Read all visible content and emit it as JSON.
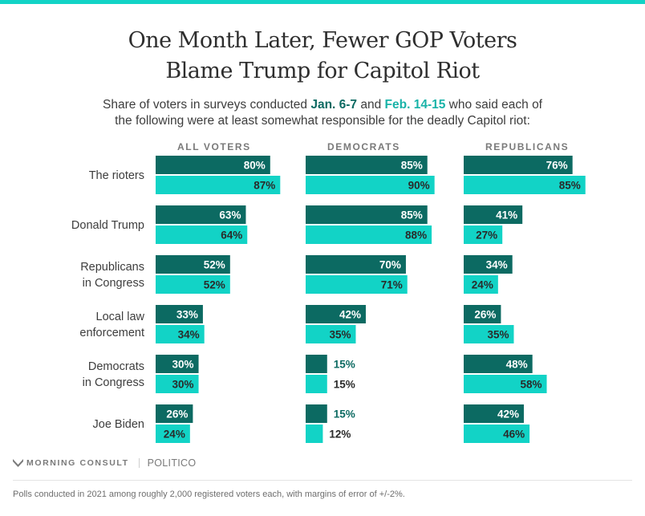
{
  "header": {
    "title_line1": "One Month Later, Fewer GOP Voters",
    "title_line2": "Blame Trump for Capitol Riot",
    "subtitle_pre": "Share of voters in surveys conducted ",
    "subtitle_jan": "Jan. 6-7",
    "subtitle_mid": " and ",
    "subtitle_feb": "Feb. 14-15",
    "subtitle_post_line1": " who said each of",
    "subtitle_line2": "the following were at least somewhat responsible for the deadly Capitol riot:"
  },
  "colors": {
    "jan": "#0c6a62",
    "feb": "#12d3c6",
    "accent_bar": "#12d3c6",
    "label_white": "#ffffff",
    "label_dark": "#2a2a2a",
    "header_gray": "#7a7a7a",
    "category_text": "#3d3d3d"
  },
  "chart_data": {
    "type": "bar",
    "orientation": "horizontal",
    "grouped": true,
    "title": "One Month Later, Fewer GOP Voters Blame Trump for Capitol Riot",
    "subtitle": "Share of voters in surveys conducted Jan. 6-7 and Feb. 14-15 who said each of the following were at least somewhat responsible for the deadly Capitol riot:",
    "series_names": [
      "Jan. 6-7",
      "Feb. 14-15"
    ],
    "categories": [
      [
        "The rioters"
      ],
      [
        "Donald Trump"
      ],
      [
        "Republicans",
        "in Congress"
      ],
      [
        "Local law",
        "enforcement"
      ],
      [
        "Democrats",
        "in Congress"
      ],
      [
        "Joe Biden"
      ]
    ],
    "panels": [
      {
        "name": "ALL VOTERS",
        "series": [
          {
            "name": "Jan. 6-7",
            "values": [
              80,
              63,
              52,
              33,
              30,
              26
            ]
          },
          {
            "name": "Feb. 14-15",
            "values": [
              87,
              64,
              52,
              34,
              30,
              24
            ]
          }
        ]
      },
      {
        "name": "DEMOCRATS",
        "series": [
          {
            "name": "Jan. 6-7",
            "values": [
              85,
              85,
              70,
              42,
              15,
              15
            ]
          },
          {
            "name": "Feb. 14-15",
            "values": [
              90,
              88,
              71,
              35,
              15,
              12
            ]
          }
        ]
      },
      {
        "name": "REPUBLICANS",
        "series": [
          {
            "name": "Jan. 6-7",
            "values": [
              76,
              41,
              34,
              26,
              48,
              42
            ]
          },
          {
            "name": "Feb. 14-15",
            "values": [
              85,
              27,
              24,
              35,
              58,
              46
            ]
          }
        ]
      }
    ],
    "value_suffix": "%",
    "xlim": [
      0,
      100
    ],
    "grid": false,
    "legend": "inline-subtitle"
  },
  "footer": {
    "brand": "MORNING CONSULT",
    "partner": "POLITICO",
    "note": "Polls conducted in 2021 among roughly 2,000 registered voters each, with margins of error of +/-2%."
  }
}
